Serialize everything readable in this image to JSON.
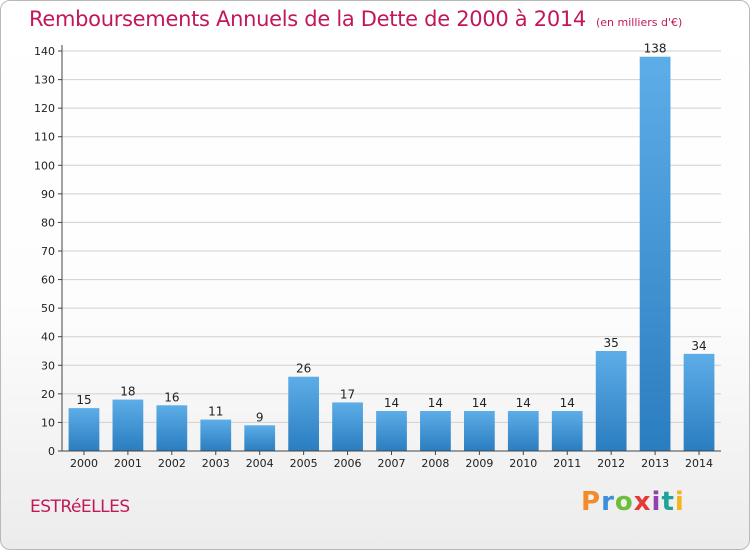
{
  "page": {
    "title": "Remboursements Annuels de la Dette de 2000 à 2014",
    "subtitle": "(en milliers d'€)",
    "commune": "ESTRéELLES",
    "logo": {
      "letters": [
        "P",
        "r",
        "o",
        "x",
        "i",
        "t",
        "i"
      ],
      "colors": [
        "#f28c28",
        "#3b8fd9",
        "#6cbf3a",
        "#e53935",
        "#8e44ad",
        "#1fa39a",
        "#f2b61f"
      ]
    }
  },
  "chart_data": {
    "type": "bar",
    "categories": [
      "2000",
      "2001",
      "2002",
      "2003",
      "2004",
      "2005",
      "2006",
      "2007",
      "2008",
      "2009",
      "2010",
      "2011",
      "2012",
      "2013",
      "2014"
    ],
    "values": [
      15,
      18,
      16,
      11,
      9,
      26,
      17,
      14,
      14,
      14,
      14,
      14,
      35,
      138,
      34
    ],
    "ylim": [
      0,
      140
    ],
    "yticks": [
      0,
      10,
      20,
      30,
      40,
      50,
      60,
      70,
      80,
      90,
      100,
      110,
      120,
      130,
      140
    ],
    "grid": true,
    "colors": {
      "bar_light": "#5dade8",
      "bar_dark": "#2a7dbf",
      "grid": "#d0d0d0",
      "accent": "#c2185b"
    }
  }
}
